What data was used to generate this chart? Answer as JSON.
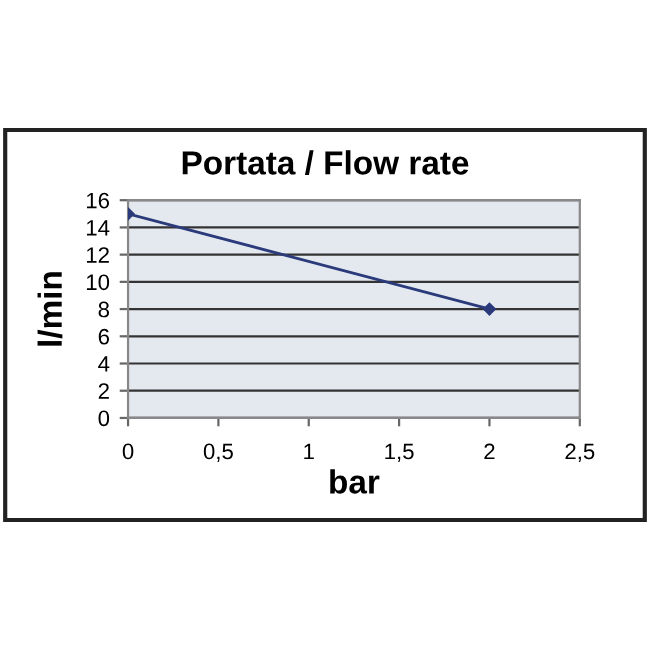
{
  "chart_data": {
    "type": "line",
    "title": "Portata / Flow rate",
    "xlabel": "bar",
    "ylabel": "l/min",
    "x": [
      0,
      2
    ],
    "series": [
      {
        "color": "#2b3a7a",
        "values": [
          15,
          8
        ]
      }
    ],
    "xlim": [
      0,
      2.5
    ],
    "xticks": [
      0,
      {
        "value": 0.5,
        "label": "0,5"
      },
      1,
      {
        "value": 1.5,
        "label": "1,5"
      },
      2,
      {
        "value": 2.5,
        "label": "2,5"
      }
    ],
    "ylim": [
      0,
      16
    ],
    "yticks": [
      0,
      2,
      4,
      6,
      8,
      10,
      12,
      14,
      16
    ],
    "grid": "y",
    "marker": "diamond",
    "line_style": "solid"
  }
}
